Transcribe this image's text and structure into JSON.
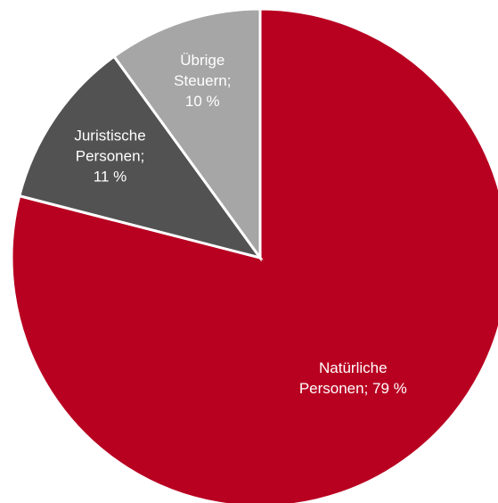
{
  "chart_data": {
    "type": "pie",
    "title": "",
    "start_angle_deg": 0,
    "direction": "clockwise",
    "legend": "none",
    "slices": [
      {
        "name": "Natürliche Personen",
        "value": 79,
        "color": "#b80021",
        "label_color": "#ffffff",
        "label_lines": [
          "Natürliche",
          "Personen; 79 %"
        ]
      },
      {
        "name": "Juristische Personen",
        "value": 11,
        "color": "#525252",
        "label_color": "#ffffff",
        "label_lines": [
          "Juristische",
          "Personen;",
          "11 %"
        ]
      },
      {
        "name": "Übrige Steuern",
        "value": 10,
        "color": "#a6a6a6",
        "label_color": "#ffffff",
        "label_lines": [
          "Übrige",
          "Steuern;",
          "10 %"
        ]
      }
    ]
  }
}
